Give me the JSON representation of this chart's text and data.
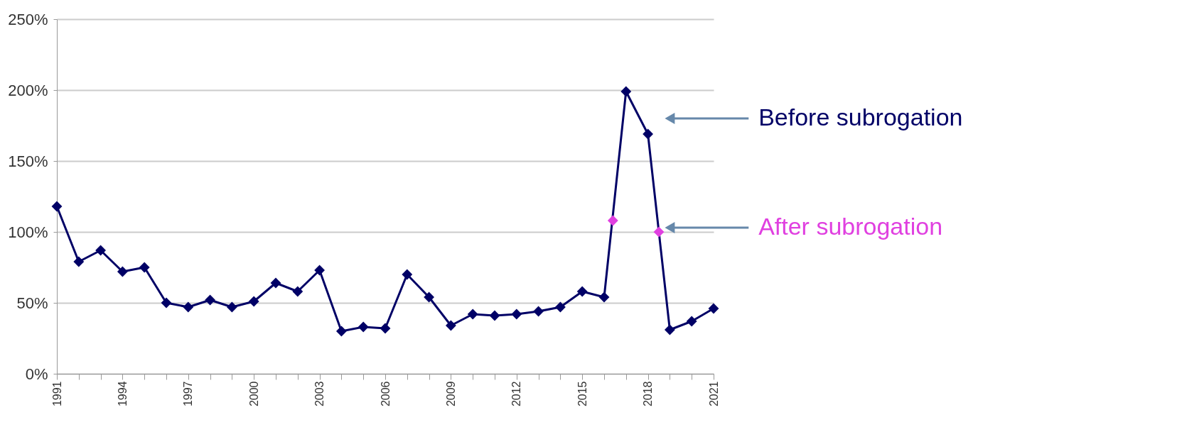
{
  "chart_data": {
    "type": "line",
    "x": [
      1991,
      1992,
      1993,
      1994,
      1995,
      1996,
      1997,
      1998,
      1999,
      2000,
      2001,
      2002,
      2003,
      2004,
      2005,
      2006,
      2007,
      2008,
      2009,
      2010,
      2011,
      2012,
      2013,
      2014,
      2015,
      2016,
      2017,
      2018,
      2019,
      2020,
      2021
    ],
    "series": [
      {
        "color": "#000066",
        "marker": "diamond",
        "values": [
          118,
          79,
          87,
          72,
          75,
          50,
          47,
          52,
          47,
          51,
          64,
          58,
          73,
          30,
          33,
          32,
          70,
          54,
          34,
          42,
          41,
          42,
          44,
          47,
          58,
          54,
          199,
          169,
          31,
          37,
          46
        ]
      },
      {
        "type": "scatter",
        "color": "#e040e0",
        "marker": "diamond",
        "x": [
          2016.4,
          2018.5
        ],
        "values": [
          108,
          100
        ]
      }
    ],
    "annotations": [
      {
        "text": "Before subrogation",
        "x": 2019,
        "y": 180
      },
      {
        "text": "After subrogation",
        "x": 2019,
        "y": 103
      }
    ],
    "xlim": [
      1991,
      2021
    ],
    "xticks": [
      1991,
      {
        "value": 1992,
        "label": null
      },
      {
        "value": 1993,
        "label": null
      },
      1994,
      {
        "value": 1995,
        "label": null
      },
      {
        "value": 1996,
        "label": null
      },
      1997,
      {
        "value": 1998,
        "label": null
      },
      {
        "value": 1999,
        "label": null
      },
      2000,
      {
        "value": 2001,
        "label": null
      },
      {
        "value": 2002,
        "label": null
      },
      2003,
      {
        "value": 2004,
        "label": null
      },
      {
        "value": 2005,
        "label": null
      },
      2006,
      {
        "value": 2007,
        "label": null
      },
      {
        "value": 2008,
        "label": null
      },
      2009,
      {
        "value": 2010,
        "label": null
      },
      {
        "value": 2011,
        "label": null
      },
      2012,
      {
        "value": 2013,
        "label": null
      },
      {
        "value": 2014,
        "label": null
      },
      2015,
      {
        "value": 2016,
        "label": null
      },
      {
        "value": 2017,
        "label": null
      },
      2018,
      {
        "value": 2019,
        "label": null
      },
      {
        "value": 2020,
        "label": null
      },
      2021
    ],
    "ylim": [
      0,
      250
    ],
    "yticks": [
      {
        "value": 0,
        "label": "0%"
      },
      {
        "value": 50,
        "label": "50%"
      },
      {
        "value": 100,
        "label": "100%"
      },
      {
        "value": 150,
        "label": "150%"
      },
      {
        "value": 200,
        "label": "200%"
      },
      {
        "value": 250,
        "label": "250%"
      }
    ],
    "grid": "y"
  }
}
